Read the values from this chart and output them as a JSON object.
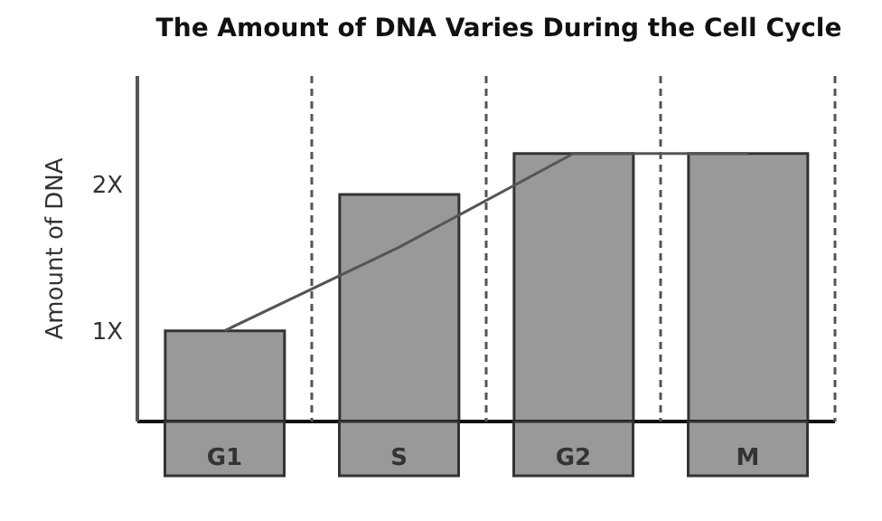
{
  "chart_data": {
    "type": "bar",
    "title": "The Amount of DNA Varies During the Cell Cycle",
    "ylabel": "Amount of DNA",
    "categories": [
      "G1",
      "S",
      "G2",
      "M"
    ],
    "values": [
      1,
      1.93,
      2.21,
      2.21
    ],
    "color": "#999999",
    "ylim": [
      0.38,
      2.74
    ],
    "yticks": [
      {
        "value": 1,
        "label": "1X"
      },
      {
        "value": 2,
        "label": "2X"
      }
    ],
    "series": [
      {
        "type": "line",
        "color": "#555555",
        "values": [
          1,
          1.57,
          2.21,
          2.21
        ]
      }
    ],
    "grid": false,
    "marker": "none",
    "line_style": "solid"
  }
}
